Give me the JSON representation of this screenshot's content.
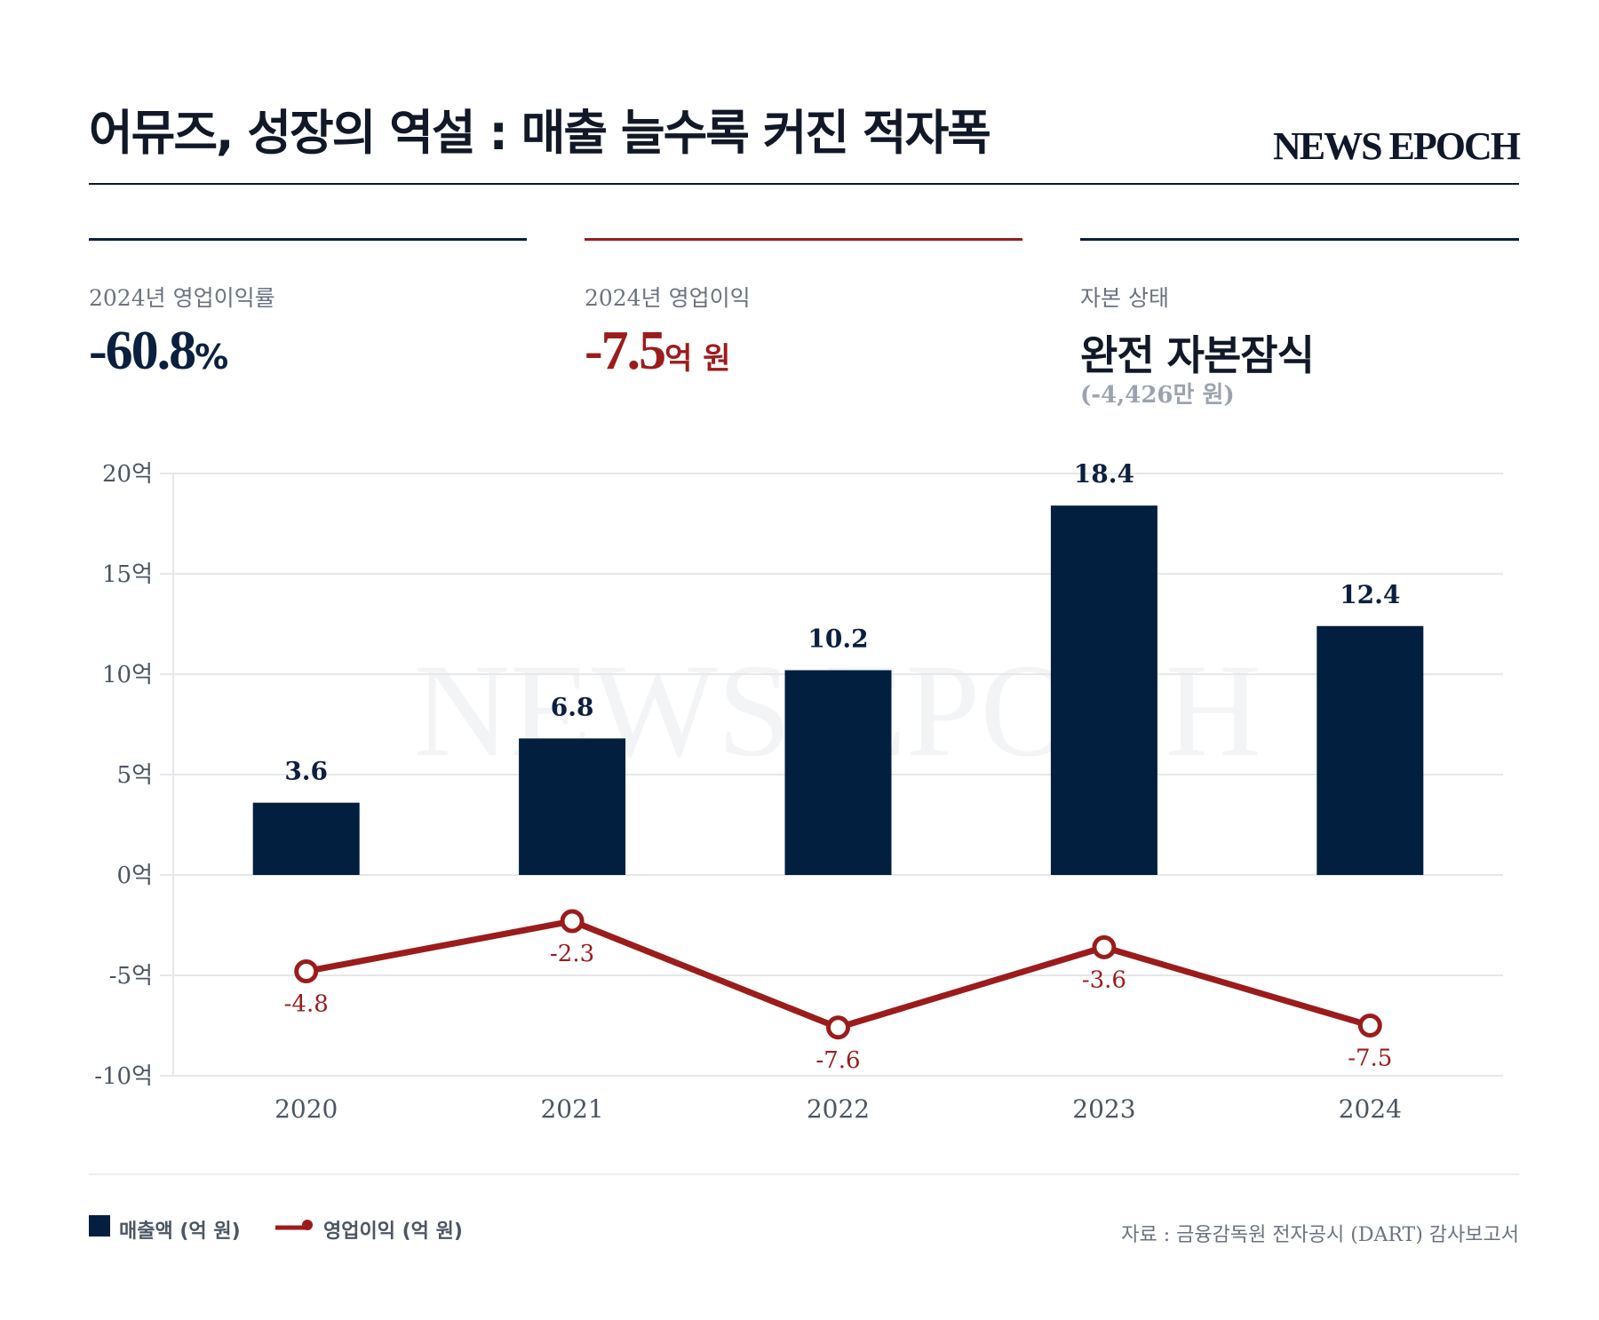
{
  "header": {
    "title": "어뮤즈, 성장의 역설 : 매출 늘수록 커진 적자폭",
    "brand": "NEWS EPOCH"
  },
  "kpis": [
    {
      "label": "2024년 영업이익률",
      "value": "-60.8",
      "unit": "%",
      "color": "#0b1f3f"
    },
    {
      "label": "2024년 영업이익",
      "value": "-7.5",
      "unit": "억 원",
      "color": "#9b1c1c"
    },
    {
      "label": "자본 상태",
      "value": "완전 자본잠식",
      "sub": "(-4,426만 원)",
      "color": "#0b1f3f"
    }
  ],
  "colors": {
    "navy": "#021f40",
    "red": "#9b1c1c",
    "grid": "#e5e7eb",
    "axis_text": "#4b5563"
  },
  "watermark": "NEWS EPOCH",
  "chart_data": {
    "type": "bar+line",
    "title": "어뮤즈, 성장의 역설 : 매출 늘수록 커진 적자폭",
    "categories": [
      "2020",
      "2021",
      "2022",
      "2023",
      "2024"
    ],
    "series": [
      {
        "name": "매출액 (억 원)",
        "type": "bar",
        "values": [
          3.6,
          6.8,
          10.2,
          18.4,
          12.4
        ],
        "labels": [
          "3.6",
          "6.8",
          "10.2",
          "18.4",
          "12.4"
        ]
      },
      {
        "name": "영업이익 (억 원)",
        "type": "line",
        "values": [
          -4.8,
          -2.3,
          -7.6,
          -3.6,
          -7.5
        ],
        "labels": [
          "-4.8",
          "-2.3",
          "-7.6",
          "-3.6",
          "-7.5"
        ]
      }
    ],
    "ylim": [
      -10,
      20
    ],
    "yticks": [
      20,
      15,
      10,
      5,
      0,
      -5,
      -10
    ],
    "ytick_labels": [
      "20억",
      "15억",
      "10억",
      "5억",
      "0억",
      "-5억",
      "-10억"
    ],
    "xlabel": "",
    "ylabel": "",
    "grid": true,
    "legend_position": "bottom-left"
  },
  "legend": [
    {
      "label": "매출액 (억 원)",
      "marker": "square"
    },
    {
      "label": "영업이익 (억 원)",
      "marker": "line-dot"
    }
  ],
  "source": "자료 : 금융감독원 전자공시 (DART) 감사보고서"
}
